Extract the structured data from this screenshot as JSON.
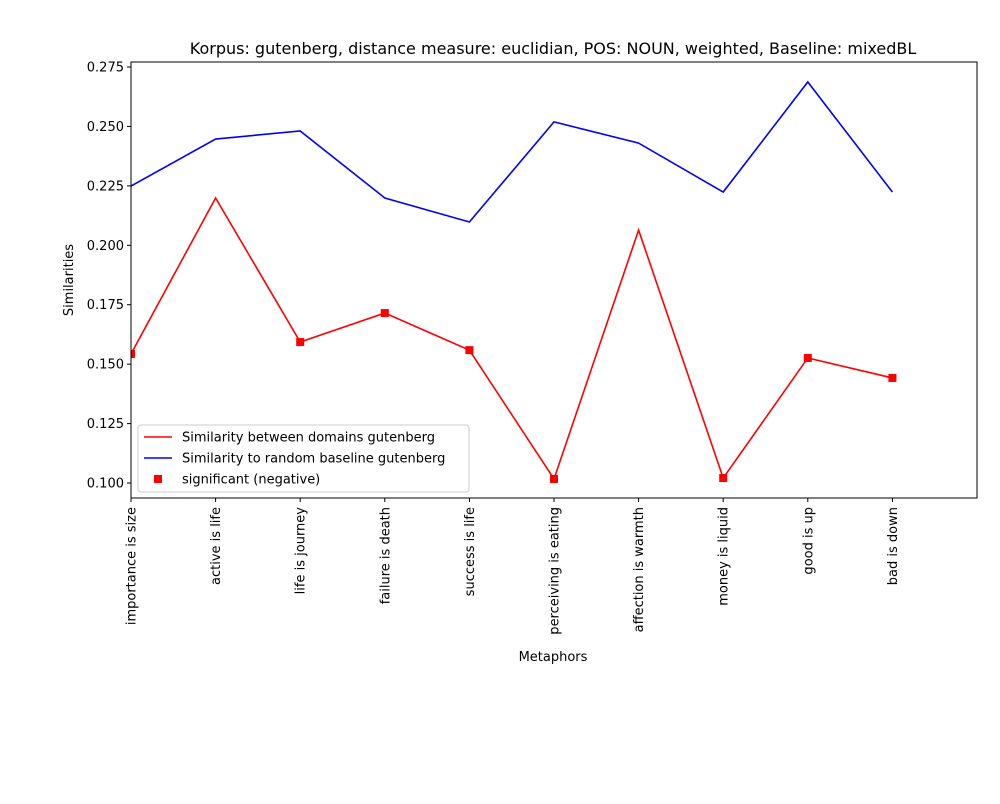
{
  "chart_data": {
    "type": "line",
    "title": "Korpus: gutenberg, distance measure: euclidian, POS: NOUN, weighted, Baseline: mixedBL",
    "xlabel": "Metaphors",
    "ylabel": "Similarities",
    "categories": [
      "importance is size",
      "active is life",
      "life is journey",
      "failure is death",
      "success is life",
      "perceiving is eating",
      "affection is warmth",
      "money is liquid",
      "good is up",
      "bad is down"
    ],
    "xlim": [
      0,
      10
    ],
    "ylim": [
      0.0937,
      0.2771
    ],
    "yticks": [
      {
        "value": 0.1,
        "label": "0.100"
      },
      0.125,
      {
        "value": 0.15,
        "label": "0.150"
      },
      0.175,
      {
        "value": 0.2,
        "label": "0.200"
      },
      0.225,
      {
        "value": 0.25,
        "label": "0.250"
      },
      0.275
    ],
    "legend": "lower left",
    "series": [
      {
        "name": "Similarity between domains gutenberg",
        "color": "#ff0000",
        "marker": "none",
        "line": true,
        "values": [
          0.1543,
          0.2199,
          0.1593,
          0.1715,
          0.1559,
          0.1017,
          0.2064,
          0.1021,
          0.1526,
          0.1442
        ]
      },
      {
        "name": "Similarity to random baseline gutenberg",
        "color": "#0000ff",
        "marker": "none",
        "line": true,
        "values": [
          0.2249,
          0.2447,
          0.2481,
          0.2199,
          0.2098,
          0.2519,
          0.243,
          0.2224,
          0.2687,
          0.2224
        ]
      },
      {
        "name": "significant (negative)",
        "color": "#ff0000",
        "marker": "square",
        "line": false,
        "values": [
          0.1543,
          null,
          0.1593,
          0.1715,
          0.1559,
          0.1017,
          null,
          0.1021,
          0.1526,
          0.1442
        ]
      }
    ]
  }
}
